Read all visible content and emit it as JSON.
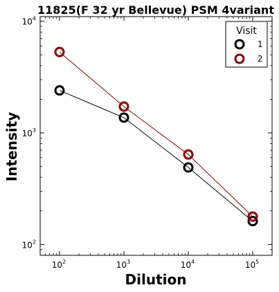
{
  "chart_data": {
    "type": "line",
    "title": "11825(F 32 yr Bellevue) PSM 4variant",
    "xlabel": "Dilution",
    "ylabel": "Intensity",
    "xscale": "log",
    "yscale": "log",
    "xlim": [
      50,
      200000
    ],
    "ylim": [
      80,
      11000
    ],
    "x_ticks": [
      {
        "base": "10",
        "exp": "2",
        "value": 100
      },
      {
        "base": "10",
        "exp": "3",
        "value": 1000
      },
      {
        "base": "10",
        "exp": "4",
        "value": 10000
      },
      {
        "base": "10",
        "exp": "5",
        "value": 100000
      }
    ],
    "y_ticks": [
      {
        "base": "10",
        "exp": "2",
        "value": 100
      },
      {
        "base": "10",
        "exp": "3",
        "value": 1000
      },
      {
        "base": "10",
        "exp": "4",
        "value": 10000
      }
    ],
    "grid": false,
    "legend": {
      "title": "Visit",
      "position": "top-right"
    },
    "series": [
      {
        "name": "1",
        "color": "#000000",
        "x": [
          100,
          1000,
          10000,
          100000
        ],
        "y": [
          2400,
          1370,
          490,
          162
        ]
      },
      {
        "name": "2",
        "color": "#8b0000",
        "x": [
          100,
          1000,
          10000,
          100000
        ],
        "y": [
          5300,
          1720,
          640,
          178
        ]
      }
    ]
  }
}
